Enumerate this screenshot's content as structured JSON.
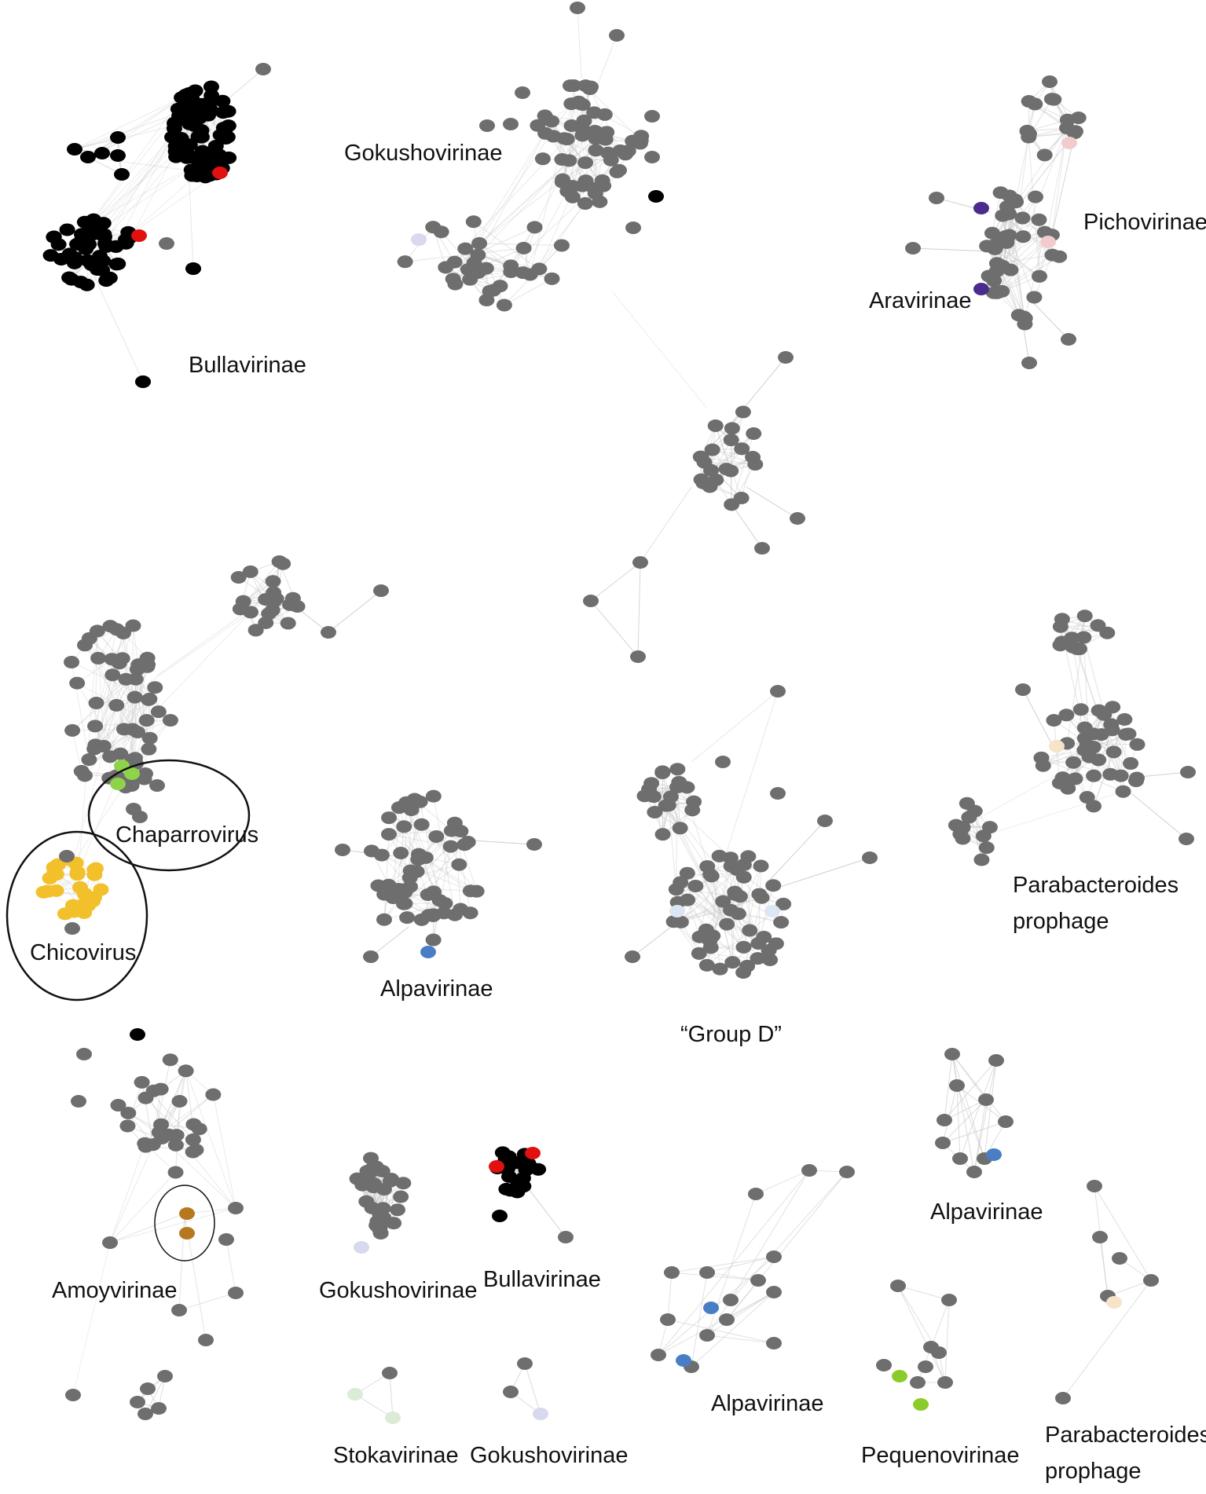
{
  "colors": {
    "node_default": "#6e6e6e",
    "bullavirinae": "#000000",
    "highlight_red": "#e31010",
    "chicovirus": "#f2c02a",
    "chaparrovirus": "#8fd448",
    "aravirinae": "#4a2c8c",
    "pichovirinae": "#f2cccc",
    "gokushovirinae": "#d8d8ee",
    "alpavirinae": "#4a7ec4",
    "group_d": "#dce6f4",
    "parabacteroides": "#f6e3c8",
    "amoyvirinae": "#b5781e",
    "stokavirinae": "#dcebd6",
    "pequenovirinae": "#8ccc2a",
    "edge": "#c4c4c4",
    "circle": "#111111"
  },
  "labels": {
    "bullavirinae_top": "Bullavirinae",
    "gokushovirinae_top": "Gokushovirinae",
    "pichovirinae": "Pichovirinae",
    "aravirinae": "Aravirinae",
    "chaparrovirus": "Chaparrovirus",
    "chicovirus": "Chicovirus",
    "alpavirinae_mid": "Alpavirinae",
    "group_d": "“Group D”",
    "parabacteroides_mid_1": "Parabacteroides",
    "parabacteroides_mid_2": "prophage",
    "amoyvirinae": "Amoyvirinae",
    "gokushovirinae_bottom": "Gokushovirinae",
    "bullavirinae_bottom": "Bullavirinae",
    "alpavirinae_right": "Alpavirinae",
    "alpavirinae_bottom": "Alpavirinae",
    "pequenovirinae": "Pequenovirinae",
    "parabacteroides_bottom_1": "Parabacteroides",
    "parabacteroides_bottom_2": "prophage",
    "stokavirinae": "Stokavirinae",
    "gokushovirinae_small": "Gokushovirinae"
  }
}
